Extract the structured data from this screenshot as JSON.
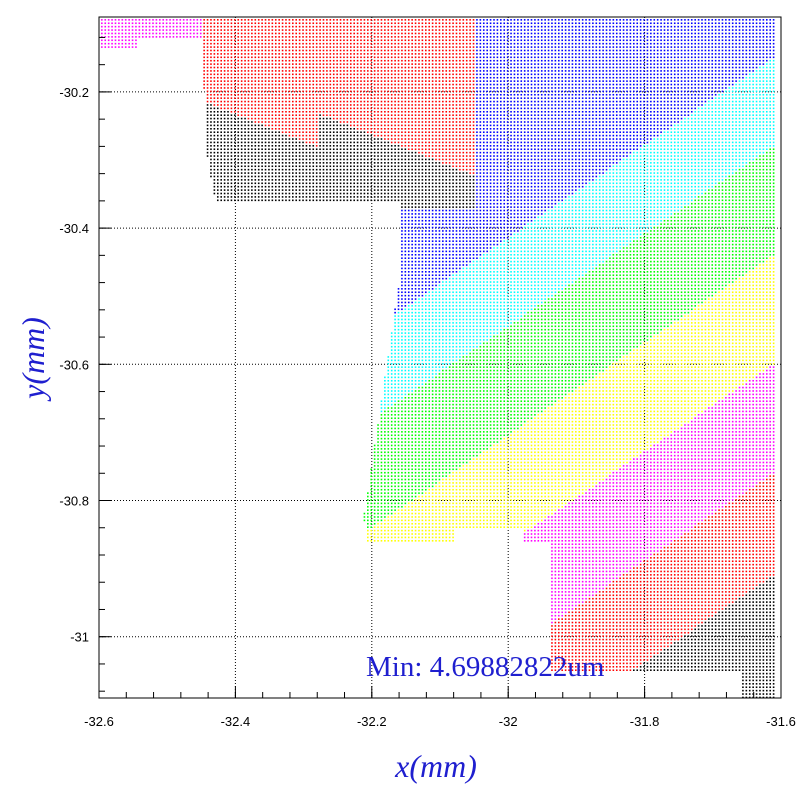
{
  "chart_data": {
    "type": "scatter",
    "xlabel": "x(mm)",
    "ylabel": "y(mm)",
    "xlim": [
      -32.6,
      -31.6
    ],
    "ylim": [
      -31.09,
      -30.09
    ],
    "x_ticks": [
      "-32.6",
      "-32.4",
      "-32.2",
      "-32",
      "-31.8",
      "-31.6"
    ],
    "x_tick_values": [
      -32.6,
      -32.4,
      -32.2,
      -32.0,
      -31.8,
      -31.6
    ],
    "y_ticks": [
      "-30.2",
      "-30.4",
      "-30.6",
      "-30.8",
      "-31"
    ],
    "y_tick_values": [
      -30.2,
      -30.4,
      -30.6,
      -30.8,
      -31.0
    ],
    "grid": true,
    "annotation": "Min: 4.69882822um",
    "grid_step_mm": 0.01,
    "band_colors": [
      "#ff00ff",
      "#ff0000",
      "#000000",
      "#0000ff",
      "#00ffff",
      "#00ff00",
      "#ffff00"
    ]
  },
  "colors": {
    "axis": "#000000",
    "grid": "#000000",
    "title": "#1f1fcf"
  }
}
